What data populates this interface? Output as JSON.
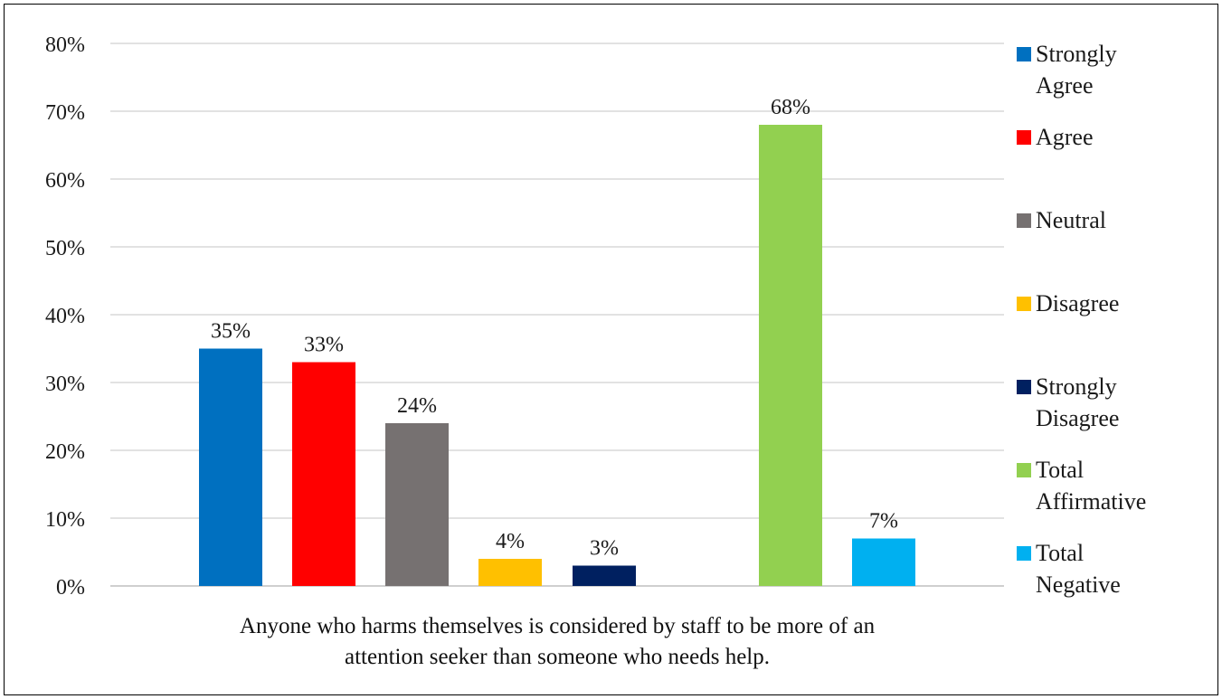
{
  "chart_data": {
    "type": "bar",
    "title": "",
    "xlabel_lines": [
      "Anyone who harms themselves is considered by staff to be more of an",
      "attention seeker than someone who needs help."
    ],
    "ylabel": "",
    "ylim": [
      0,
      80
    ],
    "y_ticks": [
      "0%",
      "10%",
      "20%",
      "30%",
      "40%",
      "50%",
      "60%",
      "70%",
      "80%"
    ],
    "grid": true,
    "legend_position": "right",
    "series": [
      {
        "name": "Strongly Agree",
        "legend_lines": [
          "Strongly",
          "Agree"
        ],
        "value": 35,
        "label": "35%",
        "color": "#0070C0"
      },
      {
        "name": "Agree",
        "legend_lines": [
          "Agree"
        ],
        "value": 33,
        "label": "33%",
        "color": "#FF0000"
      },
      {
        "name": "Neutral",
        "legend_lines": [
          "Neutral"
        ],
        "value": 24,
        "label": "24%",
        "color": "#767171"
      },
      {
        "name": "Disagree",
        "legend_lines": [
          "Disagree"
        ],
        "value": 4,
        "label": "4%",
        "color": "#FFC000"
      },
      {
        "name": "Strongly Disagree",
        "legend_lines": [
          "Strongly",
          "Disagree"
        ],
        "value": 3,
        "label": "3%",
        "color": "#002060"
      },
      {
        "name": "Total Affirmative",
        "legend_lines": [
          "Total",
          "Affirmative"
        ],
        "value": 68,
        "label": "68%",
        "color": "#92D050"
      },
      {
        "name": "Total Negative",
        "legend_lines": [
          "Total",
          "Negative"
        ],
        "value": 7,
        "label": "7%",
        "color": "#00B0F0"
      }
    ]
  }
}
